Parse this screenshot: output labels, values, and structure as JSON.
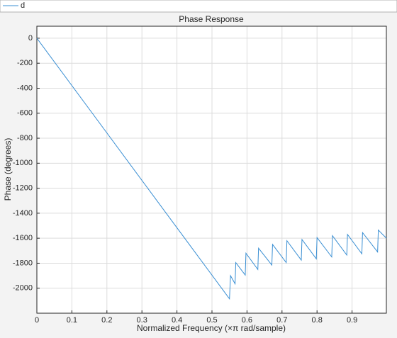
{
  "chart_data": {
    "type": "line",
    "title": "Phase Response",
    "x_label": "Normalized Frequency  (×π rad/sample)",
    "y_label": "Phase (degrees)",
    "x": [
      0,
      0.55,
      0.553,
      0.566,
      0.568,
      0.595,
      0.597,
      0.631,
      0.633,
      0.671,
      0.673,
      0.712,
      0.714,
      0.755,
      0.757,
      0.798,
      0.8,
      0.842,
      0.844,
      0.885,
      0.887,
      0.928,
      0.93,
      0.973,
      0.975,
      0.998
    ],
    "series": [
      {
        "name": "d",
        "color": "#3a8fd3",
        "values": [
          0,
          -2085,
          -1900,
          -1965,
          -1795,
          -1895,
          -1720,
          -1850,
          -1680,
          -1815,
          -1650,
          -1795,
          -1620,
          -1775,
          -1610,
          -1765,
          -1595,
          -1750,
          -1580,
          -1735,
          -1570,
          -1725,
          -1555,
          -1710,
          -1535,
          -1600
        ]
      }
    ],
    "xlim": [
      0,
      0.998
    ],
    "ylim": [
      -2200,
      96
    ],
    "xticks": [
      0,
      0.1,
      0.2,
      0.3,
      0.4,
      0.5,
      0.6,
      0.7,
      0.8,
      0.9
    ],
    "yticks": [
      -2000,
      -1800,
      -1600,
      -1400,
      -1200,
      -1000,
      -800,
      -600,
      -400,
      -200,
      0
    ],
    "grid": true,
    "legend": "top"
  }
}
